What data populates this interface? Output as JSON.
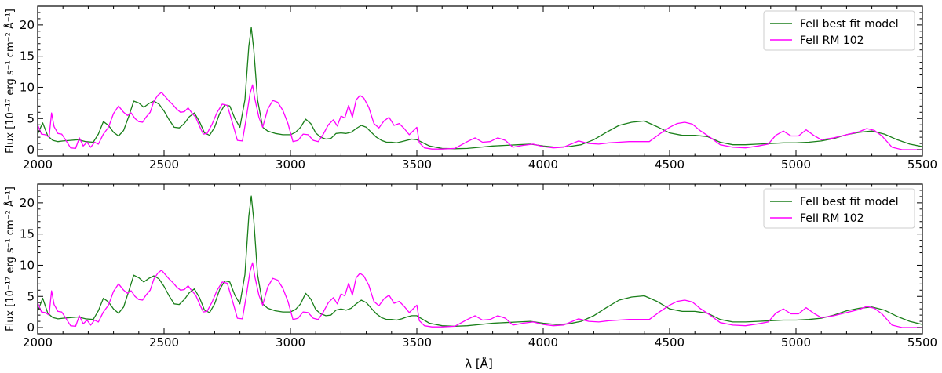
{
  "chart_data": [
    {
      "type": "line",
      "panel": "top",
      "xlabel": "",
      "ylabel": "Flux [10⁻¹⁷ erg s⁻¹ cm⁻² Å⁻¹]",
      "xlim": [
        2000,
        5500
      ],
      "ylim": [
        -1,
        23
      ],
      "xticks": [
        2000,
        2500,
        3000,
        3500,
        4000,
        4500,
        5000,
        5500
      ],
      "yticks": [
        0,
        5,
        10,
        15,
        20
      ],
      "grid": false,
      "legend": "top-right",
      "series": [
        {
          "name": "FeII best fit model",
          "color": "#1a7f1a",
          "x": [
            2000,
            2020,
            2040,
            2060,
            2080,
            2100,
            2130,
            2160,
            2190,
            2220,
            2240,
            2260,
            2280,
            2300,
            2320,
            2340,
            2360,
            2380,
            2400,
            2420,
            2440,
            2460,
            2480,
            2500,
            2520,
            2540,
            2560,
            2580,
            2600,
            2620,
            2640,
            2660,
            2680,
            2700,
            2720,
            2740,
            2760,
            2780,
            2800,
            2820,
            2835,
            2845,
            2855,
            2870,
            2890,
            2910,
            2940,
            2970,
            3000,
            3020,
            3040,
            3060,
            3080,
            3100,
            3120,
            3140,
            3160,
            3180,
            3200,
            3220,
            3240,
            3260,
            3280,
            3300,
            3320,
            3340,
            3360,
            3380,
            3400,
            3420,
            3440,
            3460,
            3480,
            3500,
            3520,
            3550,
            3600,
            3650,
            3700,
            3750,
            3800,
            3850,
            3900,
            3950,
            4000,
            4050,
            4100,
            4150,
            4200,
            4250,
            4300,
            4350,
            4400,
            4450,
            4500,
            4550,
            4600,
            4650,
            4700,
            4750,
            4800,
            4850,
            4900,
            4950,
            5000,
            5050,
            5100,
            5150,
            5200,
            5250,
            5300,
            5350,
            5400,
            5450,
            5500
          ],
          "values": [
            2.5,
            4.3,
            2.2,
            1.5,
            1.3,
            1.4,
            1.5,
            1.6,
            1.3,
            1.2,
            2.5,
            4.5,
            3.9,
            2.8,
            2.2,
            3.1,
            5.3,
            7.8,
            7.5,
            6.8,
            7.4,
            7.8,
            7.3,
            6.2,
            4.8,
            3.6,
            3.5,
            4.2,
            5.3,
            5.9,
            4.5,
            2.7,
            2.3,
            3.6,
            5.8,
            7.2,
            7.0,
            5.0,
            3.6,
            8.0,
            16.5,
            19.6,
            16.0,
            8.0,
            3.6,
            3.0,
            2.6,
            2.4,
            2.4,
            2.8,
            3.6,
            4.9,
            4.2,
            2.7,
            2.0,
            1.7,
            1.8,
            2.6,
            2.7,
            2.6,
            2.8,
            3.4,
            3.9,
            3.6,
            2.8,
            2.0,
            1.5,
            1.2,
            1.2,
            1.1,
            1.3,
            1.5,
            1.7,
            1.6,
            1.2,
            0.6,
            0.2,
            0.15,
            0.2,
            0.4,
            0.6,
            0.7,
            0.8,
            0.9,
            0.6,
            0.4,
            0.5,
            0.8,
            1.6,
            2.8,
            3.9,
            4.4,
            4.6,
            3.7,
            2.7,
            2.3,
            2.3,
            2.1,
            1.2,
            0.8,
            0.8,
            0.9,
            1.0,
            1.1,
            1.1,
            1.2,
            1.4,
            1.8,
            2.4,
            2.8,
            3.0,
            2.5,
            1.6,
            0.9,
            0.5
          ]
        },
        {
          "name": "FeII RM 102",
          "color": "#ff00ff",
          "x": [
            2000,
            2015,
            2030,
            2045,
            2055,
            2065,
            2080,
            2095,
            2110,
            2130,
            2150,
            2165,
            2180,
            2195,
            2210,
            2225,
            2240,
            2260,
            2280,
            2300,
            2320,
            2340,
            2355,
            2370,
            2385,
            2400,
            2415,
            2430,
            2445,
            2460,
            2475,
            2490,
            2505,
            2520,
            2535,
            2550,
            2565,
            2580,
            2595,
            2610,
            2625,
            2640,
            2655,
            2670,
            2690,
            2710,
            2730,
            2750,
            2770,
            2790,
            2810,
            2825,
            2840,
            2850,
            2860,
            2875,
            2890,
            2910,
            2930,
            2950,
            2970,
            2990,
            3010,
            3030,
            3050,
            3070,
            3090,
            3110,
            3130,
            3150,
            3170,
            3185,
            3200,
            3215,
            3230,
            3245,
            3260,
            3275,
            3290,
            3310,
            3330,
            3350,
            3370,
            3390,
            3410,
            3430,
            3450,
            3470,
            3490,
            3500,
            3510,
            3530,
            3560,
            3600,
            3650,
            3700,
            3730,
            3760,
            3790,
            3820,
            3850,
            3880,
            3920,
            3960,
            4000,
            4040,
            4080,
            4110,
            4140,
            4180,
            4220,
            4260,
            4300,
            4340,
            4380,
            4420,
            4460,
            4500,
            4530,
            4560,
            4590,
            4620,
            4660,
            4700,
            4750,
            4800,
            4850,
            4890,
            4920,
            4950,
            4980,
            5010,
            5040,
            5070,
            5100,
            5150,
            5200,
            5250,
            5280,
            5310,
            5340,
            5380,
            5420,
            5460,
            5500
          ],
          "values": [
            4.0,
            2.5,
            2.4,
            2.0,
            5.9,
            3.7,
            2.6,
            2.5,
            1.6,
            0.3,
            0.2,
            1.9,
            0.6,
            1.2,
            0.4,
            1.2,
            0.9,
            2.5,
            3.6,
            5.8,
            7.0,
            6.0,
            5.5,
            5.9,
            5.0,
            4.5,
            4.4,
            5.3,
            6.0,
            7.8,
            8.7,
            9.2,
            8.5,
            7.8,
            7.2,
            6.5,
            6.0,
            6.1,
            6.7,
            5.9,
            5.2,
            3.8,
            2.5,
            2.6,
            4.1,
            6.0,
            7.3,
            7.1,
            4.4,
            1.5,
            1.4,
            5.0,
            9.0,
            10.4,
            8.0,
            5.2,
            3.6,
            6.5,
            7.9,
            7.6,
            6.3,
            4.2,
            1.3,
            1.5,
            2.5,
            2.4,
            1.5,
            1.3,
            2.5,
            4.0,
            4.8,
            3.8,
            5.4,
            5.1,
            7.1,
            5.2,
            8.0,
            8.7,
            8.3,
            6.8,
            4.2,
            3.5,
            4.6,
            5.2,
            3.9,
            4.2,
            3.4,
            2.4,
            3.2,
            3.6,
            1.1,
            0.3,
            0.1,
            0.1,
            0.2,
            1.3,
            1.9,
            1.2,
            1.3,
            1.9,
            1.5,
            0.4,
            0.7,
            0.9,
            0.5,
            0.3,
            0.4,
            0.9,
            1.4,
            1.0,
            0.9,
            1.1,
            1.2,
            1.3,
            1.3,
            1.3,
            2.5,
            3.6,
            4.2,
            4.4,
            4.1,
            3.1,
            2.0,
            0.8,
            0.4,
            0.3,
            0.6,
            0.9,
            2.3,
            3.0,
            2.2,
            2.2,
            3.2,
            2.3,
            1.6,
            1.9,
            2.4,
            2.9,
            3.4,
            3.1,
            2.2,
            0.4,
            0.0,
            0.0,
            0.0
          ]
        }
      ]
    },
    {
      "type": "line",
      "panel": "bottom",
      "xlabel": "λ [Å]",
      "ylabel": "Flux [10⁻¹⁷ erg s⁻¹ cm⁻² Å⁻¹]",
      "xlim": [
        2000,
        5500
      ],
      "ylim": [
        -1,
        23
      ],
      "xticks": [
        2000,
        2500,
        3000,
        3500,
        4000,
        4500,
        5000,
        5500
      ],
      "yticks": [
        0,
        5,
        10,
        15,
        20
      ],
      "grid": false,
      "legend": "top-right",
      "series": [
        {
          "name": "FeII best fit model",
          "color": "#1a7f1a",
          "x": [
            2000,
            2020,
            2040,
            2060,
            2080,
            2100,
            2130,
            2160,
            2190,
            2220,
            2240,
            2260,
            2280,
            2300,
            2320,
            2340,
            2360,
            2380,
            2400,
            2420,
            2440,
            2460,
            2480,
            2500,
            2520,
            2540,
            2560,
            2580,
            2600,
            2620,
            2640,
            2660,
            2680,
            2700,
            2720,
            2740,
            2760,
            2780,
            2800,
            2820,
            2835,
            2845,
            2855,
            2870,
            2890,
            2910,
            2940,
            2970,
            3000,
            3020,
            3040,
            3060,
            3080,
            3100,
            3120,
            3140,
            3160,
            3180,
            3200,
            3220,
            3240,
            3260,
            3280,
            3300,
            3320,
            3340,
            3360,
            3380,
            3400,
            3420,
            3440,
            3460,
            3480,
            3500,
            3520,
            3550,
            3600,
            3650,
            3700,
            3750,
            3800,
            3850,
            3900,
            3950,
            4000,
            4050,
            4100,
            4150,
            4200,
            4250,
            4300,
            4350,
            4400,
            4450,
            4500,
            4550,
            4600,
            4650,
            4700,
            4750,
            4800,
            4850,
            4900,
            4950,
            5000,
            5050,
            5100,
            5150,
            5200,
            5250,
            5300,
            5350,
            5400,
            5450,
            5500
          ],
          "values": [
            2.6,
            4.7,
            2.3,
            1.6,
            1.4,
            1.5,
            1.6,
            1.7,
            1.4,
            1.3,
            2.7,
            4.7,
            4.1,
            3.0,
            2.3,
            3.3,
            5.8,
            8.4,
            8.0,
            7.3,
            7.9,
            8.3,
            7.8,
            6.6,
            5.1,
            3.8,
            3.7,
            4.5,
            5.6,
            6.2,
            4.8,
            2.8,
            2.4,
            3.8,
            6.1,
            7.5,
            7.3,
            5.2,
            3.8,
            8.5,
            17.8,
            21.1,
            17.2,
            8.5,
            3.8,
            3.1,
            2.7,
            2.5,
            2.5,
            2.9,
            3.8,
            5.5,
            4.6,
            2.9,
            2.2,
            1.9,
            2.0,
            2.8,
            3.0,
            2.8,
            3.1,
            3.8,
            4.4,
            4.0,
            3.1,
            2.2,
            1.6,
            1.3,
            1.3,
            1.2,
            1.4,
            1.7,
            1.9,
            1.9,
            1.4,
            0.7,
            0.3,
            0.2,
            0.3,
            0.5,
            0.7,
            0.8,
            0.9,
            1.0,
            0.7,
            0.5,
            0.6,
            1.0,
            1.9,
            3.2,
            4.4,
            4.9,
            5.1,
            4.2,
            3.0,
            2.6,
            2.6,
            2.3,
            1.3,
            0.9,
            0.9,
            1.0,
            1.1,
            1.2,
            1.2,
            1.3,
            1.5,
            2.0,
            2.7,
            3.1,
            3.3,
            2.8,
            1.8,
            1.0,
            0.5
          ]
        },
        {
          "name": "FeII RM 102",
          "color": "#ff00ff",
          "x": [
            2000,
            2015,
            2030,
            2045,
            2055,
            2065,
            2080,
            2095,
            2110,
            2130,
            2150,
            2165,
            2180,
            2195,
            2210,
            2225,
            2240,
            2260,
            2280,
            2300,
            2320,
            2340,
            2355,
            2370,
            2385,
            2400,
            2415,
            2430,
            2445,
            2460,
            2475,
            2490,
            2505,
            2520,
            2535,
            2550,
            2565,
            2580,
            2595,
            2610,
            2625,
            2640,
            2655,
            2670,
            2690,
            2710,
            2730,
            2750,
            2770,
            2790,
            2810,
            2825,
            2840,
            2850,
            2860,
            2875,
            2890,
            2910,
            2930,
            2950,
            2970,
            2990,
            3010,
            3030,
            3050,
            3070,
            3090,
            3110,
            3130,
            3150,
            3170,
            3185,
            3200,
            3215,
            3230,
            3245,
            3260,
            3275,
            3290,
            3310,
            3330,
            3350,
            3370,
            3390,
            3410,
            3430,
            3450,
            3470,
            3490,
            3500,
            3510,
            3530,
            3560,
            3600,
            3650,
            3700,
            3730,
            3760,
            3790,
            3820,
            3850,
            3880,
            3920,
            3960,
            4000,
            4040,
            4080,
            4110,
            4140,
            4180,
            4220,
            4260,
            4300,
            4340,
            4380,
            4420,
            4460,
            4500,
            4530,
            4560,
            4590,
            4620,
            4660,
            4700,
            4750,
            4800,
            4850,
            4890,
            4920,
            4950,
            4980,
            5010,
            5040,
            5070,
            5100,
            5150,
            5200,
            5250,
            5280,
            5310,
            5340,
            5380,
            5420,
            5460,
            5500
          ],
          "values": [
            4.0,
            2.5,
            2.4,
            2.0,
            5.9,
            3.7,
            2.6,
            2.5,
            1.6,
            0.3,
            0.2,
            1.9,
            0.6,
            1.2,
            0.4,
            1.2,
            0.9,
            2.5,
            3.6,
            5.8,
            7.0,
            6.0,
            5.5,
            5.9,
            5.0,
            4.5,
            4.4,
            5.3,
            6.0,
            7.8,
            8.7,
            9.2,
            8.5,
            7.8,
            7.2,
            6.5,
            6.0,
            6.1,
            6.7,
            5.9,
            5.2,
            3.8,
            2.5,
            2.6,
            4.1,
            6.0,
            7.3,
            7.1,
            4.4,
            1.5,
            1.4,
            5.0,
            9.0,
            10.4,
            8.0,
            5.2,
            3.6,
            6.5,
            7.9,
            7.6,
            6.3,
            4.2,
            1.3,
            1.5,
            2.5,
            2.4,
            1.5,
            1.3,
            2.5,
            4.0,
            4.8,
            3.8,
            5.4,
            5.1,
            7.1,
            5.2,
            8.0,
            8.7,
            8.3,
            6.8,
            4.2,
            3.5,
            4.6,
            5.2,
            3.9,
            4.2,
            3.4,
            2.4,
            3.2,
            3.6,
            1.1,
            0.3,
            0.1,
            0.1,
            0.2,
            1.3,
            1.9,
            1.2,
            1.3,
            1.9,
            1.5,
            0.4,
            0.7,
            0.9,
            0.5,
            0.3,
            0.4,
            0.9,
            1.4,
            1.0,
            0.9,
            1.1,
            1.2,
            1.3,
            1.3,
            1.3,
            2.5,
            3.6,
            4.2,
            4.4,
            4.1,
            3.1,
            2.0,
            0.8,
            0.4,
            0.3,
            0.6,
            0.9,
            2.3,
            3.0,
            2.2,
            2.2,
            3.2,
            2.3,
            1.6,
            1.9,
            2.4,
            2.9,
            3.4,
            3.1,
            2.2,
            0.4,
            0.0,
            0.0,
            0.0
          ]
        }
      ]
    }
  ]
}
